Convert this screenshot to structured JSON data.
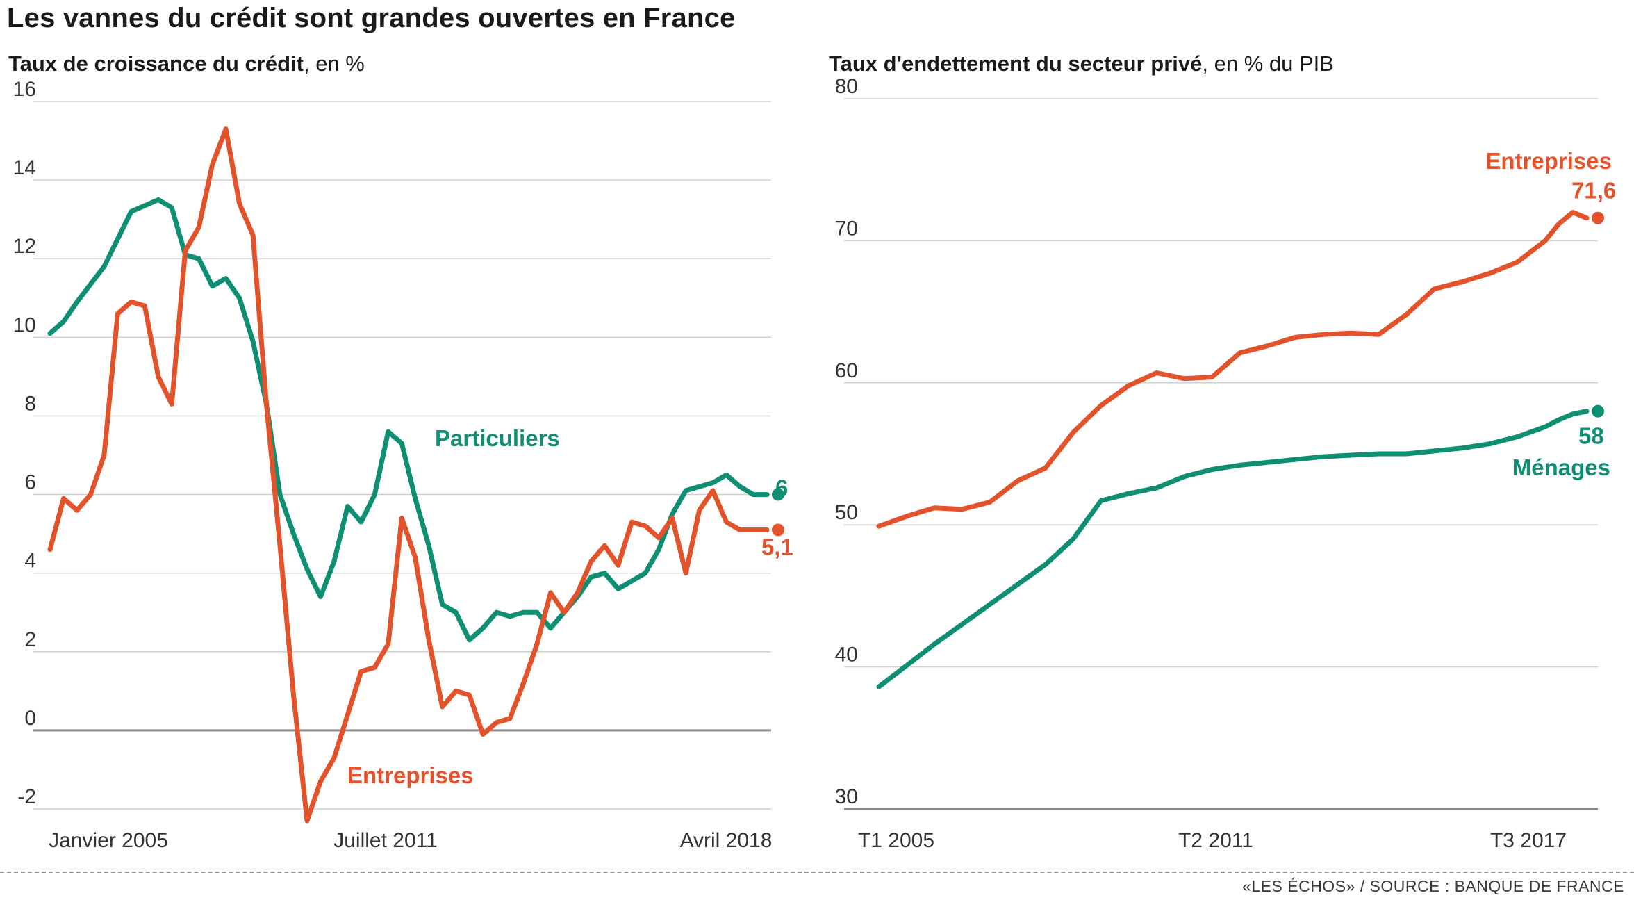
{
  "title": "Les vannes du crédit sont grandes ouvertes en France",
  "source": "«LES ÉCHOS» / SOURCE : BANQUE DE FRANCE",
  "colors": {
    "entreprises": "#e2532b",
    "particuliers": "#0e8f73",
    "grid": "#cfcfcf",
    "zero": "#8c8c8c"
  },
  "chart_data": [
    {
      "type": "line",
      "title": "Taux de croissance du crédit",
      "unit": "en %",
      "xlabel": "",
      "ylabel": "",
      "x_ticks": [
        "Janvier 2005",
        "Juillet 2011",
        "Avril 2018"
      ],
      "ylim": [
        -2,
        16
      ],
      "y_ticks": [
        16,
        14,
        12,
        10,
        8,
        6,
        4,
        2,
        0,
        -2
      ],
      "grid": true,
      "series": [
        {
          "name": "Particuliers",
          "end_label": "6",
          "x": [
            2005.0,
            2005.25,
            2005.5,
            2006.0,
            2006.5,
            2007.0,
            2007.25,
            2007.5,
            2007.75,
            2008.0,
            2008.25,
            2008.5,
            2008.75,
            2009.0,
            2009.25,
            2009.5,
            2009.75,
            2010.0,
            2010.25,
            2010.5,
            2010.75,
            2011.0,
            2011.25,
            2011.5,
            2011.75,
            2012.0,
            2012.25,
            2012.5,
            2012.75,
            2013.0,
            2013.25,
            2013.5,
            2013.75,
            2014.0,
            2014.25,
            2014.5,
            2014.75,
            2015.0,
            2015.25,
            2015.5,
            2015.75,
            2016.0,
            2016.25,
            2016.5,
            2016.75,
            2017.0,
            2017.25,
            2017.5,
            2017.75,
            2018.0,
            2018.25
          ],
          "values": [
            10.1,
            10.4,
            10.9,
            11.8,
            13.2,
            13.5,
            13.3,
            12.1,
            12.0,
            11.3,
            11.5,
            11.0,
            9.9,
            8.3,
            6.0,
            5.0,
            4.1,
            3.4,
            4.3,
            5.7,
            5.3,
            6.0,
            7.6,
            7.3,
            5.9,
            4.7,
            3.2,
            3.0,
            2.3,
            2.6,
            3.0,
            2.9,
            3.0,
            3.0,
            2.6,
            3.0,
            3.4,
            3.9,
            4.0,
            3.6,
            3.8,
            4.0,
            4.6,
            5.5,
            6.1,
            6.2,
            6.3,
            6.5,
            6.2,
            6.0,
            6.0
          ],
          "inline_label": "Particuliers"
        },
        {
          "name": "Entreprises",
          "end_label": "5,1",
          "x": [
            2005.0,
            2005.25,
            2005.5,
            2005.75,
            2006.0,
            2006.25,
            2006.5,
            2006.75,
            2007.0,
            2007.25,
            2007.5,
            2007.75,
            2008.0,
            2008.25,
            2008.5,
            2008.75,
            2009.0,
            2009.25,
            2009.5,
            2009.75,
            2010.0,
            2010.25,
            2010.5,
            2010.75,
            2011.0,
            2011.25,
            2011.5,
            2011.75,
            2012.0,
            2012.25,
            2012.5,
            2012.75,
            2013.0,
            2013.25,
            2013.5,
            2013.75,
            2014.0,
            2014.25,
            2014.5,
            2014.75,
            2015.0,
            2015.25,
            2015.5,
            2015.75,
            2016.0,
            2016.25,
            2016.5,
            2016.75,
            2017.0,
            2017.25,
            2017.5,
            2017.75,
            2018.0,
            2018.25
          ],
          "values": [
            4.6,
            5.9,
            5.6,
            6.0,
            7.0,
            10.6,
            10.9,
            10.8,
            9.0,
            8.3,
            12.2,
            12.8,
            14.4,
            15.3,
            13.4,
            12.6,
            8.3,
            4.7,
            0.9,
            -2.3,
            -1.3,
            -0.7,
            0.4,
            1.5,
            1.6,
            2.2,
            5.4,
            4.4,
            2.3,
            0.6,
            1.0,
            0.9,
            -0.1,
            0.2,
            0.3,
            1.2,
            2.2,
            3.5,
            3.0,
            3.5,
            4.3,
            4.7,
            4.2,
            5.3,
            5.2,
            4.9,
            5.4,
            4.0,
            5.6,
            6.1,
            5.3,
            5.1,
            5.1,
            5.1
          ],
          "inline_label": "Entreprises"
        }
      ]
    },
    {
      "type": "line",
      "title": "Taux d'endettement du secteur privé",
      "unit": "en  % du PIB",
      "xlabel": "",
      "ylabel": "",
      "x_ticks": [
        "T1 2005",
        "T2 2011",
        "T3 2017"
      ],
      "ylim": [
        30,
        80
      ],
      "y_ticks": [
        80,
        70,
        60,
        50,
        40,
        30
      ],
      "grid": true,
      "series": [
        {
          "name": "Entreprises",
          "end_label": "71,6",
          "x": [
            2005.0,
            2005.5,
            2006.0,
            2006.5,
            2007.0,
            2007.5,
            2008.0,
            2008.5,
            2009.0,
            2009.5,
            2010.0,
            2010.5,
            2011.0,
            2011.5,
            2012.0,
            2012.5,
            2013.0,
            2013.5,
            2014.0,
            2014.5,
            2015.0,
            2015.5,
            2016.0,
            2016.5,
            2017.0,
            2017.25,
            2017.5,
            2017.75
          ],
          "values": [
            49.9,
            50.6,
            51.2,
            51.1,
            51.6,
            53.1,
            54.0,
            56.5,
            58.4,
            59.8,
            60.7,
            60.3,
            60.4,
            62.1,
            62.6,
            63.2,
            63.4,
            63.5,
            63.4,
            64.8,
            66.6,
            67.1,
            67.7,
            68.5,
            70.0,
            71.2,
            72.0,
            71.6
          ],
          "inline_label": "Entreprises"
        },
        {
          "name": "Ménages",
          "end_label": "58",
          "x": [
            2005.0,
            2005.5,
            2006.0,
            2006.5,
            2007.0,
            2007.5,
            2008.0,
            2008.5,
            2009.0,
            2009.5,
            2010.0,
            2010.5,
            2011.0,
            2011.5,
            2012.0,
            2012.5,
            2013.0,
            2013.5,
            2014.0,
            2014.5,
            2015.0,
            2015.5,
            2016.0,
            2016.5,
            2017.0,
            2017.25,
            2017.5,
            2017.75
          ],
          "values": [
            38.6,
            40.1,
            41.6,
            43.0,
            44.4,
            45.8,
            47.2,
            49.0,
            51.7,
            52.2,
            52.6,
            53.4,
            53.9,
            54.2,
            54.4,
            54.6,
            54.8,
            54.9,
            55.0,
            55.0,
            55.2,
            55.4,
            55.7,
            56.2,
            56.9,
            57.4,
            57.8,
            58.0
          ],
          "inline_label": "Ménages"
        }
      ]
    }
  ]
}
